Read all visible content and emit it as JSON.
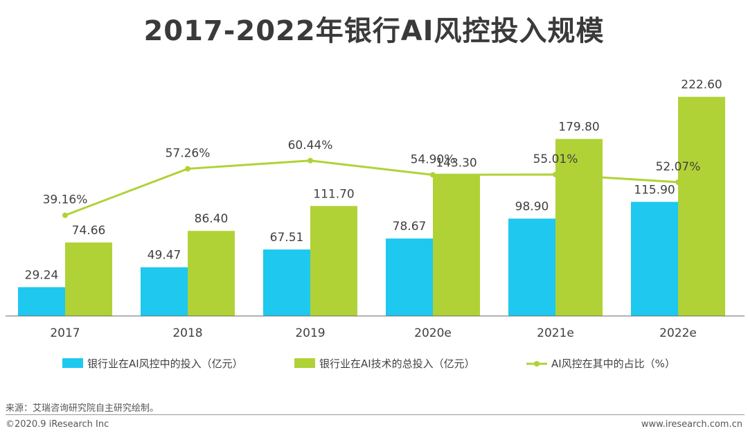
{
  "title": "2017-2022年银行AI风控投入规模",
  "source": "来源：艾瑞咨询研究院自主研究绘制。",
  "copyright": "©2020.9 iResearch Inc",
  "website": "www.iresearch.com.cn",
  "colors": {
    "blue": "#1ec8ee",
    "green": "#b0d236",
    "line": "#b0d236",
    "axis": "#666666",
    "text": "#404040"
  },
  "chart_data": {
    "type": "bar",
    "title": "2017-2022年银行AI风控投入规模",
    "categories": [
      "2017",
      "2018",
      "2019",
      "2020e",
      "2021e",
      "2022e"
    ],
    "series": [
      {
        "name": "银行业在AI风控中的投入（亿元）",
        "type": "bar",
        "values": [
          29.24,
          49.47,
          67.51,
          78.67,
          98.9,
          115.9
        ],
        "labels": [
          "29.24",
          "49.47",
          "67.51",
          "78.67",
          "98.90",
          "115.90"
        ]
      },
      {
        "name": "银行业在AI技术的总投入（亿元）",
        "type": "bar",
        "values": [
          74.66,
          86.4,
          111.7,
          143.3,
          179.8,
          222.6
        ],
        "labels": [
          "74.66",
          "86.40",
          "111.70",
          "143.30",
          "179.80",
          "222.60"
        ]
      },
      {
        "name": "AI风控在其中的占比（%）",
        "type": "line",
        "values": [
          39.16,
          57.26,
          60.44,
          54.9,
          55.01,
          52.07
        ],
        "labels": [
          "39.16%",
          "57.26%",
          "60.44%",
          "54.90%",
          "55.01%",
          "52.07%"
        ]
      }
    ],
    "ylim": [
      0,
      240
    ],
    "line_ylim": [
      0,
      100
    ],
    "legend_position": "bottom"
  }
}
